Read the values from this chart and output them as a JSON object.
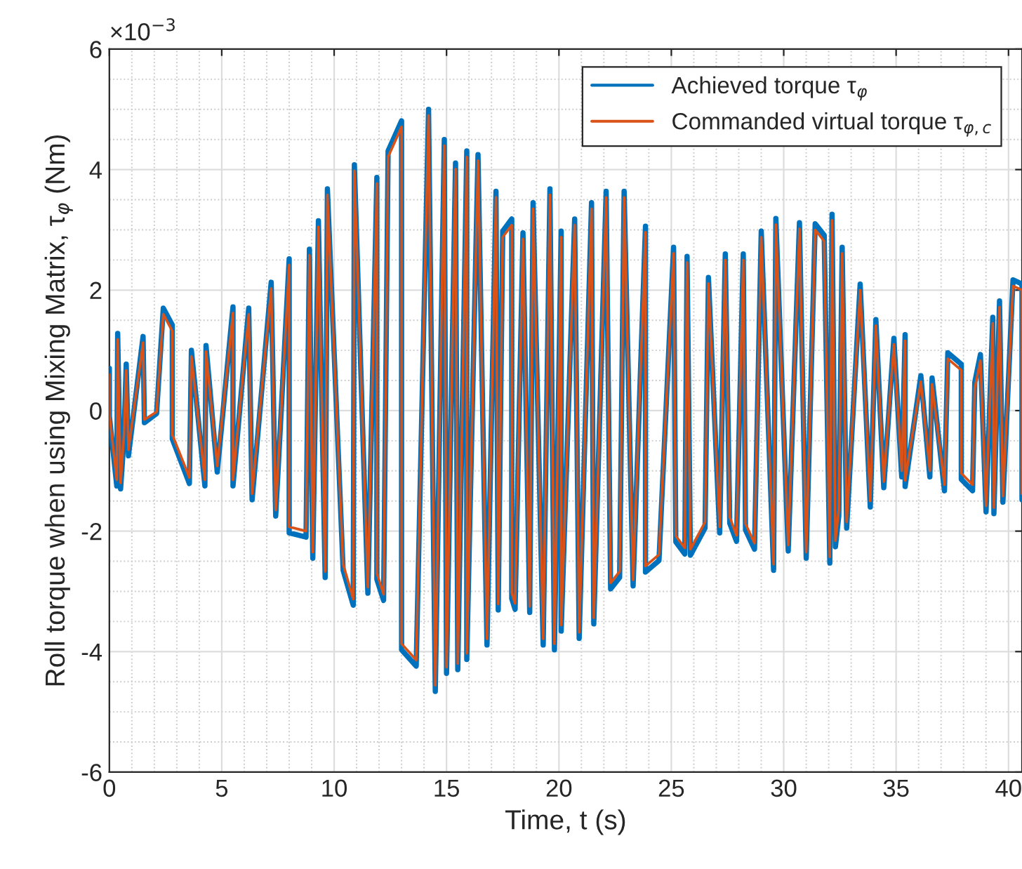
{
  "chart_data": {
    "type": "line",
    "xlabel": "Time, t (s)",
    "ylabel": "Roll torque when using Mixing Matrix, τ$_{φ}$ (Nm)",
    "annotations": [
      "×10$^{−3}$"
    ],
    "xlim": [
      0,
      40.6
    ],
    "xticks": [
      0,
      5,
      10,
      15,
      20,
      25,
      30,
      35,
      40
    ],
    "ylim": [
      -6,
      6
    ],
    "yticks": [
      -6,
      -4,
      -2,
      0,
      2,
      4,
      6
    ],
    "grid": true,
    "legend": "top right",
    "series": [
      {
        "name": "Achieved torque τ$_{φ}$",
        "color": "#0072bd",
        "x": [
          0,
          0,
          0.33,
          0.37,
          0.5,
          0.65,
          0.75,
          0.85,
          1.5,
          1.56,
          2.1,
          2.4,
          2.8,
          2.8,
          3.56,
          3.65,
          4.25,
          4.3,
          4.8,
          5.5,
          5.5,
          6.2,
          6.35,
          7.2,
          7.4,
          8.0,
          8.0,
          8.75,
          8.9,
          9.05,
          9.3,
          9.6,
          9.7,
          10.4,
          10.85,
          10.9,
          11.5,
          11.9,
          11.9,
          12.2,
          12.4,
          13.0,
          13.0,
          13.65,
          14.2,
          14.5,
          14.9,
          15.0,
          15.4,
          15.5,
          15.9,
          15.9,
          16.4,
          16.8,
          17.2,
          17.3,
          17.5,
          17.9,
          17.9,
          18.05,
          18.4,
          18.7,
          18.85,
          19.3,
          19.6,
          19.8,
          20.1,
          20.1,
          20.7,
          20.9,
          21.45,
          21.55,
          22.1,
          22.3,
          22.7,
          22.9,
          23.3,
          23.85,
          23.85,
          24.45,
          25.1,
          25.2,
          25.6,
          25.7,
          25.85,
          26.5,
          26.65,
          27.15,
          27.4,
          27.6,
          27.9,
          28.2,
          28.3,
          28.7,
          29.0,
          29.55,
          29.65,
          30.2,
          30.7,
          31.0,
          31.4,
          31.8,
          32.05,
          32.15,
          32.3,
          32.45,
          32.6,
          32.8,
          33.4,
          33.85,
          34.1,
          34.45,
          34.9,
          35.25,
          35.4,
          35.4,
          36.1,
          36.5,
          36.6,
          37.15,
          37.3,
          37.9,
          37.9,
          38.4,
          38.5,
          38.75,
          39.0,
          39.3,
          39.35,
          39.6,
          39.75,
          40.2,
          40.6,
          40.6
        ],
        "values": [
          0.7,
          -0.09,
          -1.25,
          1.28,
          -1.3,
          -0.47,
          0.77,
          -0.75,
          1.23,
          -0.2,
          -0.05,
          1.7,
          1.42,
          -0.47,
          -1.21,
          1.0,
          -1.25,
          1.08,
          -1.02,
          1.72,
          -1.25,
          1.7,
          -1.48,
          2.13,
          -1.75,
          2.52,
          -2.03,
          -2.1,
          2.68,
          -2.45,
          3.15,
          -2.77,
          3.68,
          -2.65,
          -3.23,
          4.08,
          -3.03,
          3.87,
          -2.8,
          -3.15,
          4.31,
          4.81,
          -3.97,
          -4.24,
          5.0,
          -4.66,
          4.5,
          -4.36,
          4.11,
          -4.3,
          4.31,
          -4.13,
          4.25,
          -3.89,
          3.64,
          -3.31,
          2.98,
          3.18,
          -3.12,
          -3.3,
          2.95,
          -3.35,
          3.45,
          -3.89,
          3.68,
          -3.97,
          2.98,
          -3.66,
          3.18,
          -3.78,
          3.45,
          -3.54,
          3.64,
          -2.96,
          -2.77,
          3.64,
          -2.91,
          3.06,
          -2.68,
          -2.49,
          2.71,
          -2.18,
          -2.38,
          2.56,
          -2.4,
          -1.95,
          2.21,
          -2.03,
          2.6,
          -1.87,
          -2.17,
          2.6,
          -1.98,
          -2.3,
          2.98,
          -2.65,
          3.19,
          -2.33,
          3.12,
          -2.45,
          3.1,
          2.91,
          -2.53,
          3.26,
          -2.26,
          -1.75,
          2.71,
          -1.95,
          2.1,
          -1.6,
          1.51,
          -1.28,
          1.2,
          -1.1,
          1.26,
          -1.26,
          0.58,
          -1.1,
          0.54,
          -1.33,
          0.96,
          0.77,
          -1.14,
          -1.33,
          0.47,
          0.93,
          -1.68,
          1.55,
          -1.71,
          1.82,
          -1.52,
          2.17,
          2.1,
          -1.48
        ]
      },
      {
        "name": "Commanded virtual torque τ$_{φ,c}$",
        "color": "#d95319",
        "x": [
          0,
          0,
          0.33,
          0.37,
          0.5,
          0.65,
          0.75,
          0.85,
          1.5,
          1.56,
          2.1,
          2.4,
          2.8,
          2.8,
          3.56,
          3.65,
          4.25,
          4.3,
          4.8,
          5.5,
          5.5,
          6.2,
          6.35,
          7.2,
          7.4,
          8.0,
          8.0,
          8.75,
          8.9,
          9.05,
          9.3,
          9.6,
          9.7,
          10.4,
          10.85,
          10.9,
          11.5,
          11.9,
          11.9,
          12.2,
          12.4,
          13.0,
          13.0,
          13.65,
          14.2,
          14.5,
          14.9,
          15.0,
          15.4,
          15.5,
          15.9,
          15.9,
          16.4,
          16.8,
          17.2,
          17.3,
          17.5,
          17.9,
          17.9,
          18.05,
          18.4,
          18.7,
          18.85,
          19.3,
          19.6,
          19.8,
          20.1,
          20.1,
          20.7,
          20.9,
          21.45,
          21.55,
          22.1,
          22.3,
          22.7,
          22.9,
          23.3,
          23.85,
          23.85,
          24.45,
          25.1,
          25.2,
          25.6,
          25.7,
          25.85,
          26.5,
          26.65,
          27.15,
          27.4,
          27.6,
          27.9,
          28.2,
          28.3,
          28.7,
          29.0,
          29.55,
          29.65,
          30.2,
          30.7,
          31.0,
          31.4,
          31.8,
          32.05,
          32.15,
          32.3,
          32.45,
          32.6,
          32.8,
          33.4,
          33.85,
          34.1,
          34.45,
          34.9,
          35.25,
          35.4,
          35.4,
          36.1,
          36.5,
          36.6,
          37.15,
          37.3,
          37.9,
          37.9,
          38.4,
          38.5,
          38.75,
          39.0,
          39.3,
          39.35,
          39.6,
          39.75,
          40.2,
          40.6,
          40.6
        ],
        "values": [
          0.6,
          -0.05,
          -1.15,
          1.18,
          -1.2,
          -0.4,
          0.67,
          -0.65,
          1.13,
          -0.15,
          -0.02,
          1.6,
          1.32,
          -0.4,
          -1.11,
          0.9,
          -1.15,
          0.98,
          -0.92,
          1.62,
          -1.15,
          1.6,
          -1.38,
          2.03,
          -1.65,
          2.42,
          -1.93,
          -2.0,
          2.58,
          -2.35,
          3.05,
          -2.67,
          3.58,
          -2.55,
          -3.13,
          3.98,
          -2.93,
          3.77,
          -2.7,
          -3.05,
          4.21,
          4.71,
          -3.87,
          -4.14,
          4.9,
          -4.56,
          4.4,
          -4.26,
          4.01,
          -4.2,
          4.21,
          -4.03,
          4.15,
          -3.79,
          3.54,
          -3.21,
          2.88,
          3.08,
          -3.02,
          -3.2,
          2.85,
          -3.25,
          3.35,
          -3.79,
          3.58,
          -3.87,
          2.88,
          -3.56,
          3.08,
          -3.68,
          3.35,
          -3.44,
          3.54,
          -2.86,
          -2.67,
          3.54,
          -2.81,
          2.96,
          -2.58,
          -2.39,
          2.61,
          -2.08,
          -2.28,
          2.46,
          -2.3,
          -1.85,
          2.11,
          -1.93,
          2.5,
          -1.77,
          -2.07,
          2.5,
          -1.88,
          -2.2,
          2.88,
          -2.55,
          3.09,
          -2.23,
          3.02,
          -2.35,
          3.0,
          2.81,
          -2.43,
          3.16,
          -2.16,
          -1.65,
          2.61,
          -1.85,
          2.0,
          -1.5,
          1.41,
          -1.18,
          1.1,
          -1.0,
          1.16,
          -1.16,
          0.48,
          -1.0,
          0.44,
          -1.23,
          0.86,
          0.67,
          -1.04,
          -1.23,
          0.37,
          0.83,
          -1.58,
          1.45,
          -1.61,
          1.72,
          -1.42,
          2.07,
          2.0,
          -1.38
        ]
      }
    ]
  }
}
